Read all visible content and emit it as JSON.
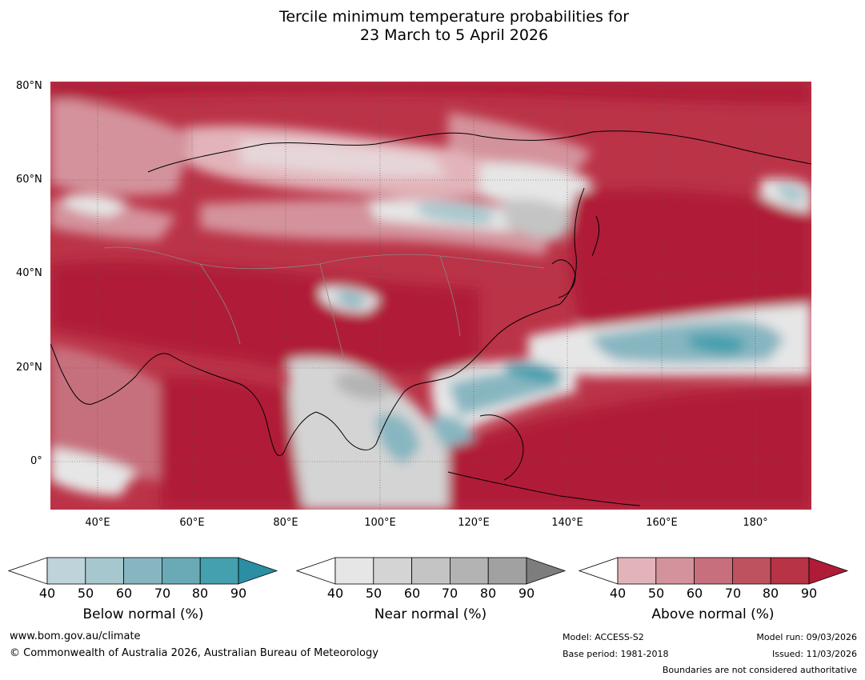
{
  "title": {
    "line1": "Tercile minimum temperature probabilities for",
    "line2": "23 March to 5 April 2026"
  },
  "axes": {
    "latitudes": [
      "80°N",
      "60°N",
      "40°N",
      "20°N",
      "0°"
    ],
    "longitudes": [
      "40°E",
      "60°E",
      "80°E",
      "100°E",
      "120°E",
      "140°E",
      "160°E",
      "180°"
    ]
  },
  "colorbars": {
    "tick_labels": [
      "40",
      "50",
      "60",
      "70",
      "80",
      "90"
    ],
    "below": {
      "label": "Below normal (%)",
      "colors": [
        "#ffffff",
        "#bfd3db",
        "#a7c7ce",
        "#87b6c1",
        "#6aaab6",
        "#449fae",
        "#2b8ea3"
      ]
    },
    "near": {
      "label": "Near normal (%)",
      "colors": [
        "#ffffff",
        "#e6e6e6",
        "#d4d4d4",
        "#c4c4c4",
        "#b3b3b3",
        "#a1a1a1",
        "#7d7d7d"
      ]
    },
    "above": {
      "label": "Above normal (%)",
      "colors": [
        "#ffffff",
        "#e2b4ba",
        "#d4939c",
        "#c76f7d",
        "#bf525f",
        "#b73345",
        "#b01c38"
      ]
    }
  },
  "footer": {
    "website": "www.bom.gov.au/climate",
    "copyright": "© Commonwealth of Australia 2026, Australian Bureau of Meteorology",
    "model": "Model: ACCESS-S2",
    "base_period": "Base period: 1981-2018",
    "model_run": "Model run: 09/03/2026",
    "issued": "Issued: 11/03/2026",
    "disclaimer": "Boundaries are not considered authoritative"
  }
}
